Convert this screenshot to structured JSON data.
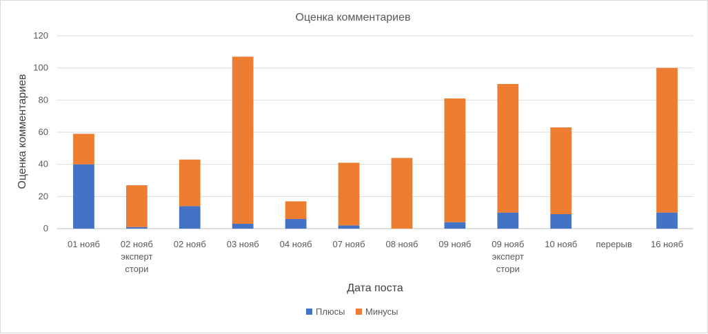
{
  "chart_data": {
    "type": "bar",
    "stacked": true,
    "title": "Оценка комментариев",
    "xlabel": "Дата поста",
    "ylabel": "Оценка комментариев",
    "ylim": [
      0,
      120
    ],
    "yticks": [
      0,
      20,
      40,
      60,
      80,
      100,
      120
    ],
    "grid": true,
    "legend_position": "bottom",
    "categories": [
      [
        "01 нояб"
      ],
      [
        "02 нояб",
        "эксперт",
        "стори"
      ],
      [
        "02 нояб"
      ],
      [
        "03 нояб"
      ],
      [
        "04 нояб"
      ],
      [
        "07 нояб"
      ],
      [
        "08 нояб"
      ],
      [
        "09 нояб"
      ],
      [
        "09 нояб",
        "эксперт",
        "стори"
      ],
      [
        "10 нояб"
      ],
      [
        "перерыв"
      ],
      [
        "16 нояб"
      ]
    ],
    "series": [
      {
        "name": "Плюсы",
        "color": "#4472c4",
        "values": [
          40,
          1,
          14,
          3,
          6,
          2,
          0,
          4,
          10,
          9,
          0,
          10
        ]
      },
      {
        "name": "Минусы",
        "color": "#ed7d31",
        "values": [
          19,
          26,
          29,
          104,
          11,
          39,
          44,
          77,
          80,
          54,
          0,
          90
        ]
      }
    ]
  }
}
